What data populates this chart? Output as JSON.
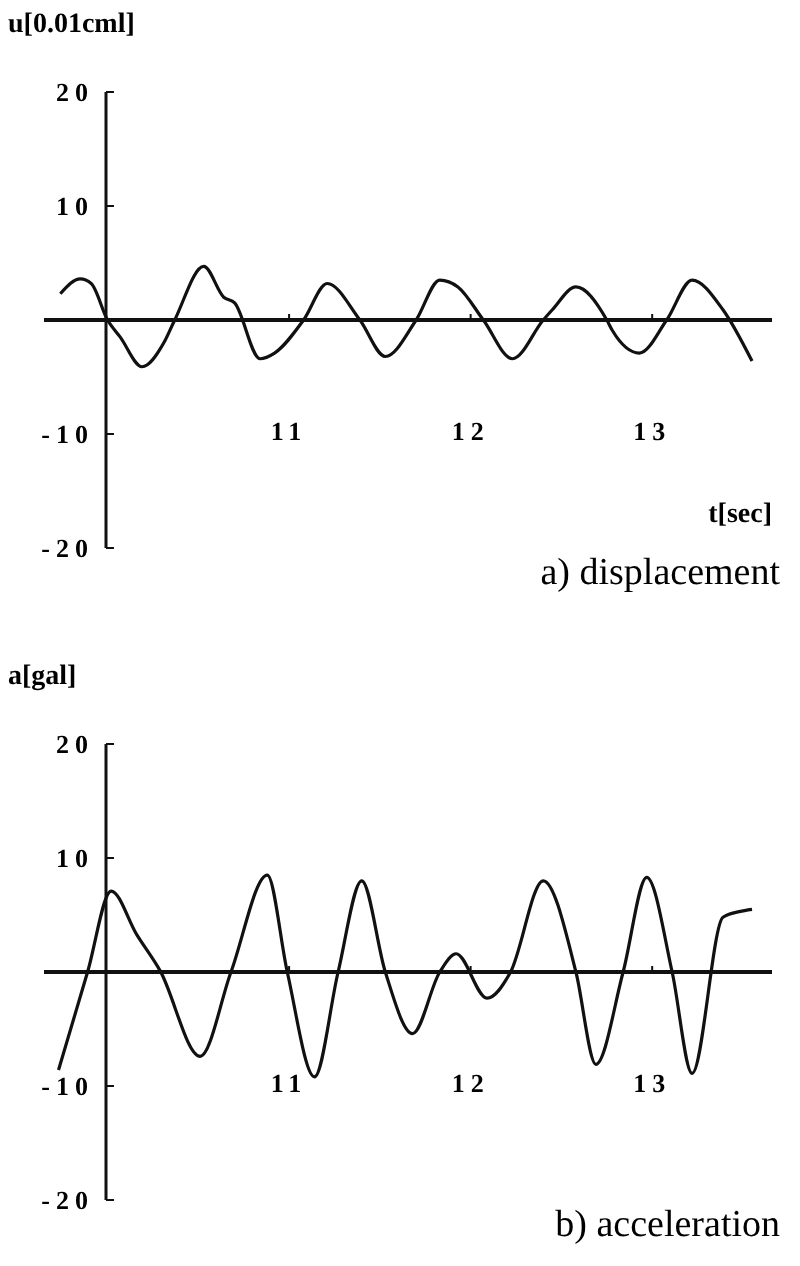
{
  "chart_data": [
    {
      "type": "line",
      "title": "a) displacement",
      "xlabel": "t[sec]",
      "ylabel": "u[0.01cml]",
      "x": [
        9.74,
        9.85,
        9.91,
        10.0,
        10.07,
        10.19,
        10.31,
        10.37,
        10.53,
        10.64,
        10.7,
        10.84,
        10.92,
        11.08,
        11.21,
        11.39,
        11.53,
        11.7,
        11.83,
        11.93,
        12.07,
        12.23,
        12.4,
        12.45,
        12.58,
        12.75,
        12.78,
        12.93,
        13.08,
        13.22,
        13.39,
        13.55
      ],
      "series": [
        {
          "color": "#111111",
          "values": [
            2.3,
            3.6,
            3.2,
            0,
            -1.5,
            -4.1,
            -2.0,
            0,
            4.7,
            2.0,
            1.5,
            -3.4,
            -2.9,
            0,
            3.2,
            0,
            -3.2,
            0,
            3.5,
            2.9,
            0,
            -3.4,
            0,
            0.9,
            2.9,
            0,
            -0.9,
            -2.9,
            0,
            3.5,
            0.9,
            -3.6
          ]
        }
      ],
      "xlim": [
        9.65,
        13.66
      ],
      "xticks": [
        11,
        12,
        13
      ],
      "ylim": [
        -20,
        20
      ],
      "yticks": [
        -20,
        -10,
        10,
        20
      ]
    },
    {
      "type": "line",
      "title": "b) acceleration",
      "ylabel": "a[gal]",
      "x": [
        9.73,
        9.89,
        10.02,
        10.16,
        10.29,
        10.51,
        10.68,
        10.88,
        10.99,
        11.14,
        11.27,
        11.4,
        11.53,
        11.68,
        11.83,
        11.92,
        12.09,
        12.22,
        12.4,
        12.58,
        12.69,
        12.84,
        12.97,
        13.11,
        13.22,
        13.39,
        13.48,
        13.55
      ],
      "series": [
        {
          "color": "#111111",
          "values": [
            -8.6,
            0,
            7.1,
            3.3,
            0.1,
            -7.4,
            0,
            8.5,
            0,
            -9.2,
            0,
            8.0,
            0,
            -5.4,
            0,
            1.6,
            -2.3,
            0,
            8.0,
            0,
            -8.1,
            0,
            8.3,
            0,
            -8.9,
            4.8,
            5.3,
            5.5
          ]
        }
      ],
      "xlim": [
        9.65,
        13.66
      ],
      "xticks": [
        11,
        12,
        13
      ],
      "ylim": [
        -20,
        20
      ],
      "yticks": [
        -20,
        -10,
        10,
        20
      ]
    }
  ]
}
